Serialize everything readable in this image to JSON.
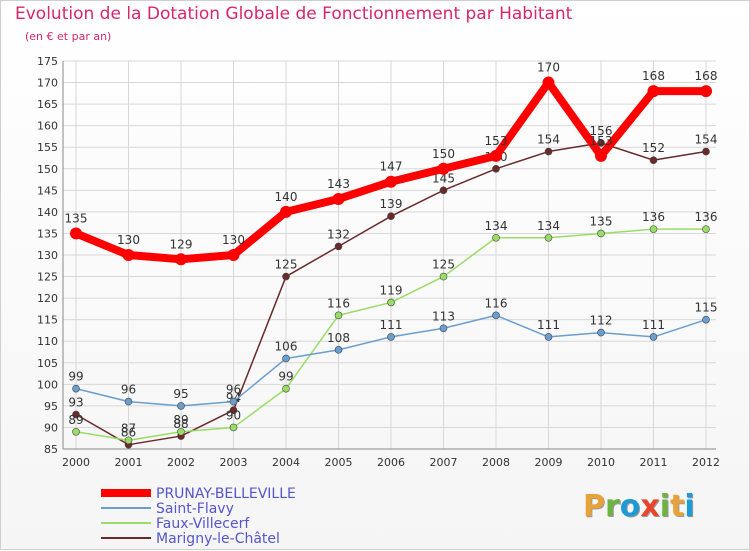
{
  "title": "Evolution de la Dotation Globale de Fonctionnement par Habitant",
  "subtitle": "(en € et par an)",
  "logo": {
    "letters": [
      "P",
      "r",
      "o",
      "x",
      "i",
      "t",
      "i"
    ],
    "colors": [
      "#e8a23a",
      "#6cb33f",
      "#1e9bd7",
      "#e8452c",
      "#6cb33f",
      "#e8a23a",
      "#1e9bd7"
    ]
  },
  "chart_data": {
    "type": "line",
    "title": "Evolution de la Dotation Globale de Fonctionnement par Habitant",
    "ylabel": "(en € et par an)",
    "x": [
      "2000",
      "2001",
      "2002",
      "2003",
      "2004",
      "2005",
      "2006",
      "2007",
      "2008",
      "2009",
      "2010",
      "2011",
      "2012"
    ],
    "ylim": [
      85,
      175
    ],
    "yticks": [
      85,
      90,
      95,
      100,
      105,
      110,
      115,
      120,
      125,
      130,
      135,
      140,
      145,
      150,
      155,
      160,
      165,
      170,
      175
    ],
    "series": [
      {
        "name": "PRUNAY-BELLEVILLE",
        "color": "#ff0000",
        "values": [
          135,
          130,
          129,
          130,
          140,
          143,
          147,
          150,
          153,
          170,
          153,
          168,
          168
        ]
      },
      {
        "name": "Saint-Flavy",
        "color": "#6a9ecf",
        "values": [
          99,
          96,
          95,
          96,
          106,
          108,
          111,
          113,
          116,
          111,
          112,
          111,
          115
        ]
      },
      {
        "name": "Faux-Villecerf",
        "color": "#99dd66",
        "values": [
          89,
          87,
          89,
          90,
          99,
          116,
          119,
          125,
          134,
          134,
          135,
          136,
          136
        ]
      },
      {
        "name": "Marigny-le-Châtel",
        "color": "#6b2a2a",
        "values": [
          93,
          86,
          88,
          94,
          125,
          132,
          139,
          145,
          150,
          154,
          156,
          152,
          154
        ]
      }
    ]
  }
}
